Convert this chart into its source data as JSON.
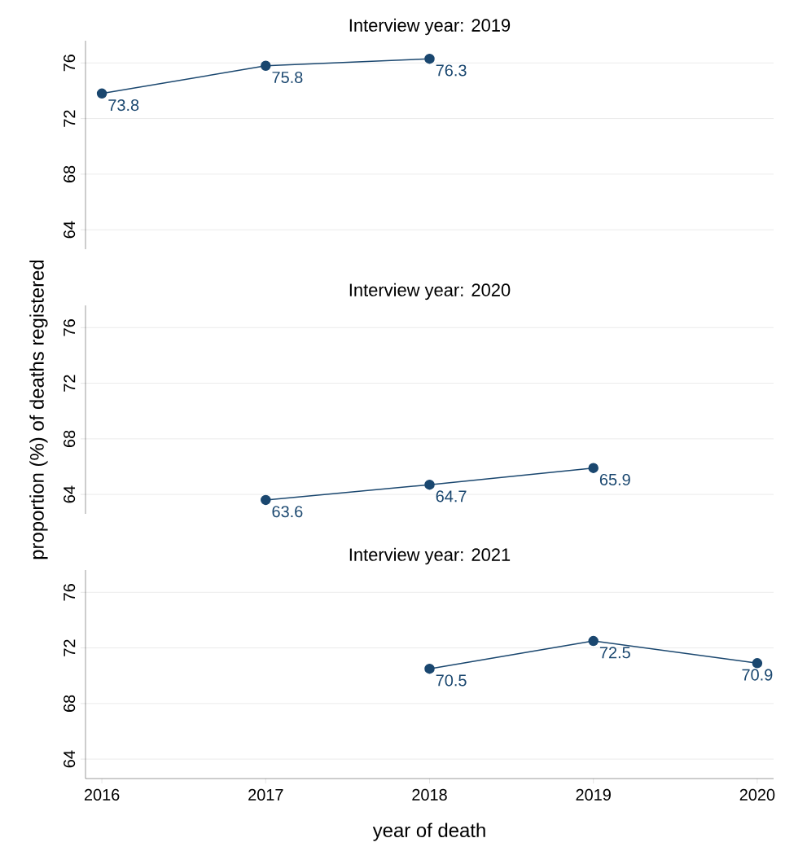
{
  "chart_data": [
    {
      "type": "line",
      "title": "Interview year: 2019",
      "x": [
        2016,
        2017,
        2018
      ],
      "values": [
        73.8,
        75.8,
        76.3
      ],
      "color": "#1a476f",
      "xlim": [
        2015.9,
        2020.1
      ],
      "xticks": [
        2016,
        2017,
        2018,
        2019,
        2020
      ],
      "ylim": [
        62.6,
        77.6
      ],
      "yticks": [
        64,
        68,
        72,
        76
      ],
      "grid": "y",
      "marker": "circle",
      "data_labels": true,
      "tick_labels": "y"
    },
    {
      "type": "line",
      "title": "Interview year: 2020",
      "ylabel": "proportion (%) of deaths registered",
      "x": [
        2017,
        2018,
        2019
      ],
      "values": [
        63.6,
        64.7,
        65.9
      ],
      "color": "#1a476f",
      "xlim": [
        2015.9,
        2020.1
      ],
      "xticks": [
        2016,
        2017,
        2018,
        2019,
        2020
      ],
      "ylim": [
        62.6,
        77.6
      ],
      "yticks": [
        64,
        68,
        72,
        76
      ],
      "grid": "y",
      "marker": "circle",
      "data_labels": true,
      "tick_labels": "y"
    },
    {
      "type": "line",
      "title": "Interview year: 2021",
      "xlabel": "year of death",
      "x": [
        2018,
        2019,
        2020
      ],
      "values": [
        70.5,
        72.5,
        70.9
      ],
      "color": "#1a476f",
      "xlim": [
        2015.9,
        2020.1
      ],
      "xticks": [
        2016,
        2017,
        2018,
        2019,
        2020
      ],
      "ylim": [
        62.6,
        77.6
      ],
      "yticks": [
        64,
        68,
        72,
        76
      ],
      "grid": "y",
      "marker": "circle",
      "data_labels": true
    }
  ]
}
